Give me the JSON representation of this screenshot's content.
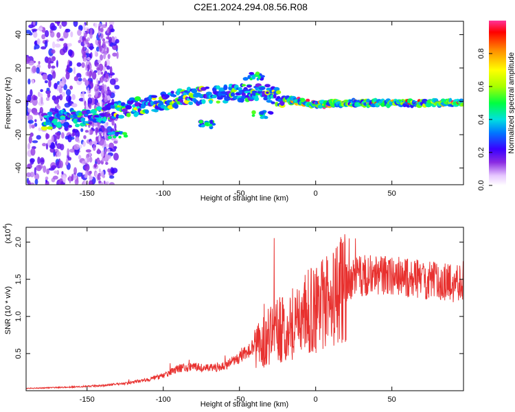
{
  "figure": {
    "title": "C2E1.2024.294.08.56.R08"
  },
  "chart_data": [
    {
      "type": "heatmap",
      "name": "spectrogram",
      "xlabel": "Height of straight line (km)",
      "ylabel": "Frequency (Hz)",
      "xlim": [
        -190,
        97
      ],
      "ylim": [
        -50,
        48
      ],
      "xticks": [
        -150,
        -100,
        -50,
        0,
        50
      ],
      "yticks": [
        -40,
        -20,
        0,
        20,
        40
      ],
      "colorbar": {
        "label": "Normalized spectral amplitude",
        "range": [
          0,
          1
        ],
        "ticks": [
          "0.0",
          "0.2",
          "0.4",
          "0.6",
          "0.8"
        ],
        "tick_values": [
          0.0,
          0.2,
          0.4,
          0.6,
          0.8
        ]
      },
      "ridge": {
        "description_points": [
          [
            -175,
            -12
          ],
          [
            -160,
            -10
          ],
          [
            -140,
            -8
          ],
          [
            -130,
            -5
          ],
          [
            -110,
            -2
          ],
          [
            -90,
            2
          ],
          [
            -70,
            4
          ],
          [
            -50,
            5
          ],
          [
            -35,
            6
          ],
          [
            -20,
            1
          ],
          [
            -10,
            0
          ],
          [
            0,
            -2
          ],
          [
            20,
            -1
          ],
          [
            50,
            -1
          ],
          [
            80,
            -1
          ],
          [
            97,
            -1
          ]
        ],
        "secondary_points": [
          [
            -130,
            -20
          ],
          [
            -70,
            -14
          ],
          [
            -35,
            -8
          ],
          [
            -40,
            15
          ]
        ]
      }
    },
    {
      "type": "line",
      "name": "snr",
      "xlabel": "Height of straight line (km)",
      "ylabel": "SNR (10 * v/v)",
      "yscale_label": "(x10",
      "yscale_exp": "4",
      "yscale_close": ")",
      "xlim": [
        -190,
        97
      ],
      "ylim": [
        0,
        2.2
      ],
      "xticks": [
        -150,
        -100,
        -50,
        0,
        50
      ],
      "yticks": [
        0.5,
        1.0,
        1.5,
        2.0
      ],
      "ytick_labels": [
        "0.5",
        "1.0",
        "1.5",
        "2.0"
      ],
      "color": "#e8312f",
      "trend": [
        [
          -190,
          0.03
        ],
        [
          -160,
          0.05
        ],
        [
          -140,
          0.07
        ],
        [
          -125,
          0.1
        ],
        [
          -110,
          0.15
        ],
        [
          -100,
          0.2
        ],
        [
          -90,
          0.3
        ],
        [
          -80,
          0.32
        ],
        [
          -70,
          0.3
        ],
        [
          -60,
          0.33
        ],
        [
          -50,
          0.45
        ],
        [
          -40,
          0.6
        ],
        [
          -30,
          0.75
        ],
        [
          -20,
          0.85
        ],
        [
          -10,
          1.0
        ],
        [
          0,
          1.1
        ],
        [
          10,
          1.2
        ],
        [
          20,
          1.45
        ],
        [
          30,
          1.55
        ],
        [
          50,
          1.55
        ],
        [
          70,
          1.5
        ],
        [
          90,
          1.45
        ],
        [
          97,
          1.5
        ]
      ]
    }
  ]
}
